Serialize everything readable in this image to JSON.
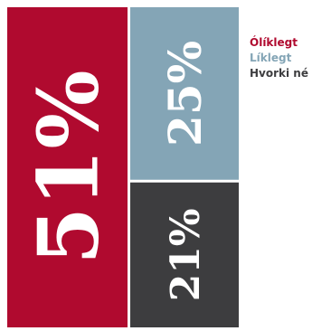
{
  "chart_data": {
    "type": "treemap",
    "title": "",
    "series": [
      {
        "name": "Ólíklegt",
        "value": 51,
        "label": "51%",
        "color": "#b00a2f"
      },
      {
        "name": "Líklegt",
        "value": 25,
        "label": "25%",
        "color": "#84a5b6"
      },
      {
        "name": "Hvorki né",
        "value": 21,
        "label": "21%",
        "color": "#3d3d3f"
      }
    ],
    "legend_position": "top-right",
    "grid": false
  }
}
